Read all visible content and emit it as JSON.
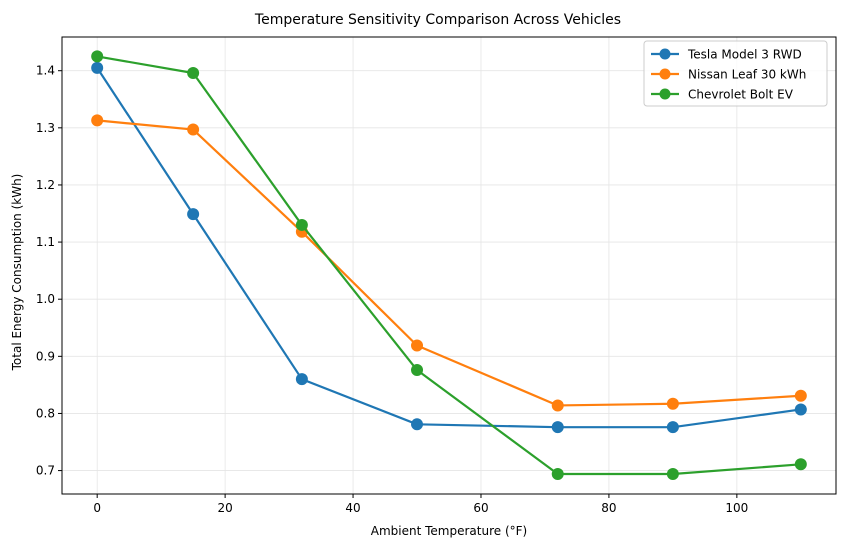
{
  "chart_data": {
    "type": "line",
    "title": "Temperature Sensitivity Comparison Across Vehicles",
    "xlabel": "Ambient Temperature (°F)",
    "ylabel": "Total Energy Consumption (kWh)",
    "x": [
      0,
      15,
      32,
      50,
      72,
      90,
      110
    ],
    "xlim": [
      -5.5,
      115.5
    ],
    "ylim": [
      0.659,
      1.459
    ],
    "xticks": [
      0,
      20,
      40,
      60,
      80,
      100
    ],
    "xtick_labels": [
      "0",
      "20",
      "40",
      "60",
      "80",
      "100"
    ],
    "yticks": [
      0.7,
      0.8,
      0.9,
      1.0,
      1.1,
      1.2,
      1.3,
      1.4
    ],
    "ytick_labels": [
      "0.7",
      "0.8",
      "0.9",
      "1.0",
      "1.1",
      "1.2",
      "1.3",
      "1.4"
    ],
    "grid": true,
    "legend_position": "top-right",
    "series": [
      {
        "name": "Tesla Model 3 RWD",
        "color": "#1f77b4",
        "marker": "circle",
        "values": [
          1.405,
          1.149,
          0.86,
          0.781,
          0.776,
          0.776,
          0.807
        ]
      },
      {
        "name": "Nissan Leaf 30 kWh",
        "color": "#ff7f0e",
        "marker": "circle",
        "values": [
          1.313,
          1.297,
          1.118,
          0.919,
          0.814,
          0.817,
          0.831
        ]
      },
      {
        "name": "Chevrolet Bolt EV",
        "color": "#2ca02c",
        "marker": "circle",
        "values": [
          1.425,
          1.396,
          1.13,
          0.876,
          0.694,
          0.694,
          0.711
        ]
      }
    ]
  }
}
